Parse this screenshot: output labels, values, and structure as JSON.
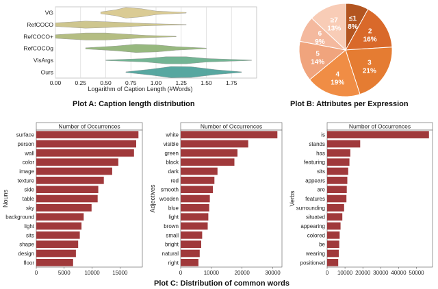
{
  "captions": {
    "plot_a": "Plot A: Caption length distribution",
    "plot_b": "Plot B: Attributes per Expression",
    "plot_c": "Plot C: Distribution of common words"
  },
  "chart_data": [
    {
      "id": "violin",
      "type": "violin",
      "title": "",
      "xlabel": "Logarithm of Caption Length (#Words)",
      "ylabel": "",
      "xlim": [
        0.0,
        2.0
      ],
      "xticks": [
        "0.00",
        "0.25",
        "0.50",
        "0.75",
        "1.00",
        "1.25",
        "1.50",
        "1.75"
      ],
      "categories": [
        "VG",
        "RefCOCO",
        "RefCOCO+",
        "RefCOCOg",
        "VisArgs",
        "Ours"
      ],
      "colors": [
        "#d9c98f",
        "#ccc389",
        "#b0ba7c",
        "#92b579",
        "#6cb08f",
        "#4fa39b"
      ],
      "profiles": [
        {
          "name": "VG",
          "x": [
            0.45,
            0.6,
            0.7,
            0.85,
            1.0,
            1.3
          ],
          "w": [
            0.15,
            0.5,
            0.9,
            0.7,
            0.3,
            0.05
          ]
        },
        {
          "name": "RefCOCO",
          "x": [
            0.0,
            0.3,
            0.5,
            0.7,
            0.9,
            1.1,
            1.3
          ],
          "w": [
            0.3,
            0.6,
            0.5,
            0.35,
            0.2,
            0.1,
            0.03
          ]
        },
        {
          "name": "RefCOCO+",
          "x": [
            0.0,
            0.3,
            0.5,
            0.7,
            0.9,
            1.2
          ],
          "w": [
            0.3,
            0.6,
            0.6,
            0.4,
            0.2,
            0.04
          ]
        },
        {
          "name": "RefCOCOg",
          "x": [
            0.3,
            0.6,
            0.8,
            1.0,
            1.2,
            1.5
          ],
          "w": [
            0.1,
            0.4,
            0.7,
            0.6,
            0.3,
            0.05
          ]
        },
        {
          "name": "VisArgs",
          "x": [
            0.5,
            0.9,
            1.1,
            1.3,
            1.5,
            1.95
          ],
          "w": [
            0.05,
            0.3,
            0.6,
            0.6,
            0.3,
            0.03
          ]
        },
        {
          "name": "Ours",
          "x": [
            0.7,
            0.95,
            1.15,
            1.35,
            1.6,
            1.85
          ],
          "w": [
            0.05,
            0.5,
            0.95,
            0.9,
            0.4,
            0.05
          ]
        }
      ]
    },
    {
      "id": "pie",
      "type": "pie",
      "title": "",
      "labels": [
        "≤1",
        "2",
        "3",
        "4",
        "5",
        "6",
        "≥7"
      ],
      "values": [
        8,
        16,
        21,
        19,
        14,
        9,
        13
      ],
      "percent_labels": [
        "8%",
        "16%",
        "21%",
        "19%",
        "14%",
        "9%",
        "13%"
      ],
      "colors": [
        "#b35520",
        "#d9692a",
        "#e57c32",
        "#f08d45",
        "#f0a47d",
        "#f4b99e",
        "#f8ccb6"
      ]
    },
    {
      "id": "nouns",
      "type": "bar",
      "orientation": "horizontal",
      "title": "Number of Occurrences",
      "ylabel": "Nouns",
      "xlim": [
        0,
        19000
      ],
      "xticks": [
        0,
        5000,
        10000,
        15000
      ],
      "xtick_labels": [
        "0",
        "5000",
        "10000",
        "15000"
      ],
      "color": "#a0393b",
      "categories": [
        "surface",
        "person",
        "wall",
        "color",
        "image",
        "texture",
        "side",
        "table",
        "sky",
        "background",
        "light",
        "sits",
        "shape",
        "design",
        "floor"
      ],
      "values": [
        18300,
        17900,
        17500,
        14700,
        13600,
        12100,
        11100,
        11000,
        9900,
        8500,
        8100,
        7800,
        7500,
        7100,
        6600
      ]
    },
    {
      "id": "adjectives",
      "type": "bar",
      "orientation": "horizontal",
      "title": "Number of Occurrences",
      "ylabel": "Adjectives",
      "xlim": [
        0,
        33000
      ],
      "xticks": [
        0,
        10000,
        20000,
        30000
      ],
      "xtick_labels": [
        "0",
        "10000",
        "20000",
        "30000"
      ],
      "color": "#a0393b",
      "categories": [
        "white",
        "visible",
        "green",
        "black",
        "dark",
        "red",
        "smooth",
        "wooden",
        "blue",
        "light",
        "brown",
        "small",
        "bright",
        "natural",
        "right"
      ],
      "values": [
        31500,
        22000,
        18500,
        17500,
        12000,
        11000,
        10500,
        9500,
        9300,
        9000,
        8800,
        7000,
        6700,
        6200,
        5800
      ]
    },
    {
      "id": "verbs",
      "type": "bar",
      "orientation": "horizontal",
      "title": "Number of Occurrences",
      "ylabel": "Verbs",
      "xlim": [
        0,
        59000
      ],
      "xticks": [
        0,
        10000,
        20000,
        30000,
        40000,
        50000
      ],
      "xtick_labels": [
        "0",
        "10000",
        "20000",
        "30000",
        "40000",
        "50000"
      ],
      "color": "#a0393b",
      "categories": [
        "is",
        "stands",
        "has",
        "featuring",
        "sits",
        "appears",
        "are",
        "features",
        "surrounding",
        "situated",
        "appearing",
        "colored",
        "be",
        "wearing",
        "positioned"
      ],
      "values": [
        57000,
        18500,
        13000,
        12500,
        11800,
        11300,
        11000,
        10800,
        9500,
        8500,
        7500,
        7000,
        6800,
        6500,
        6200
      ]
    }
  ]
}
